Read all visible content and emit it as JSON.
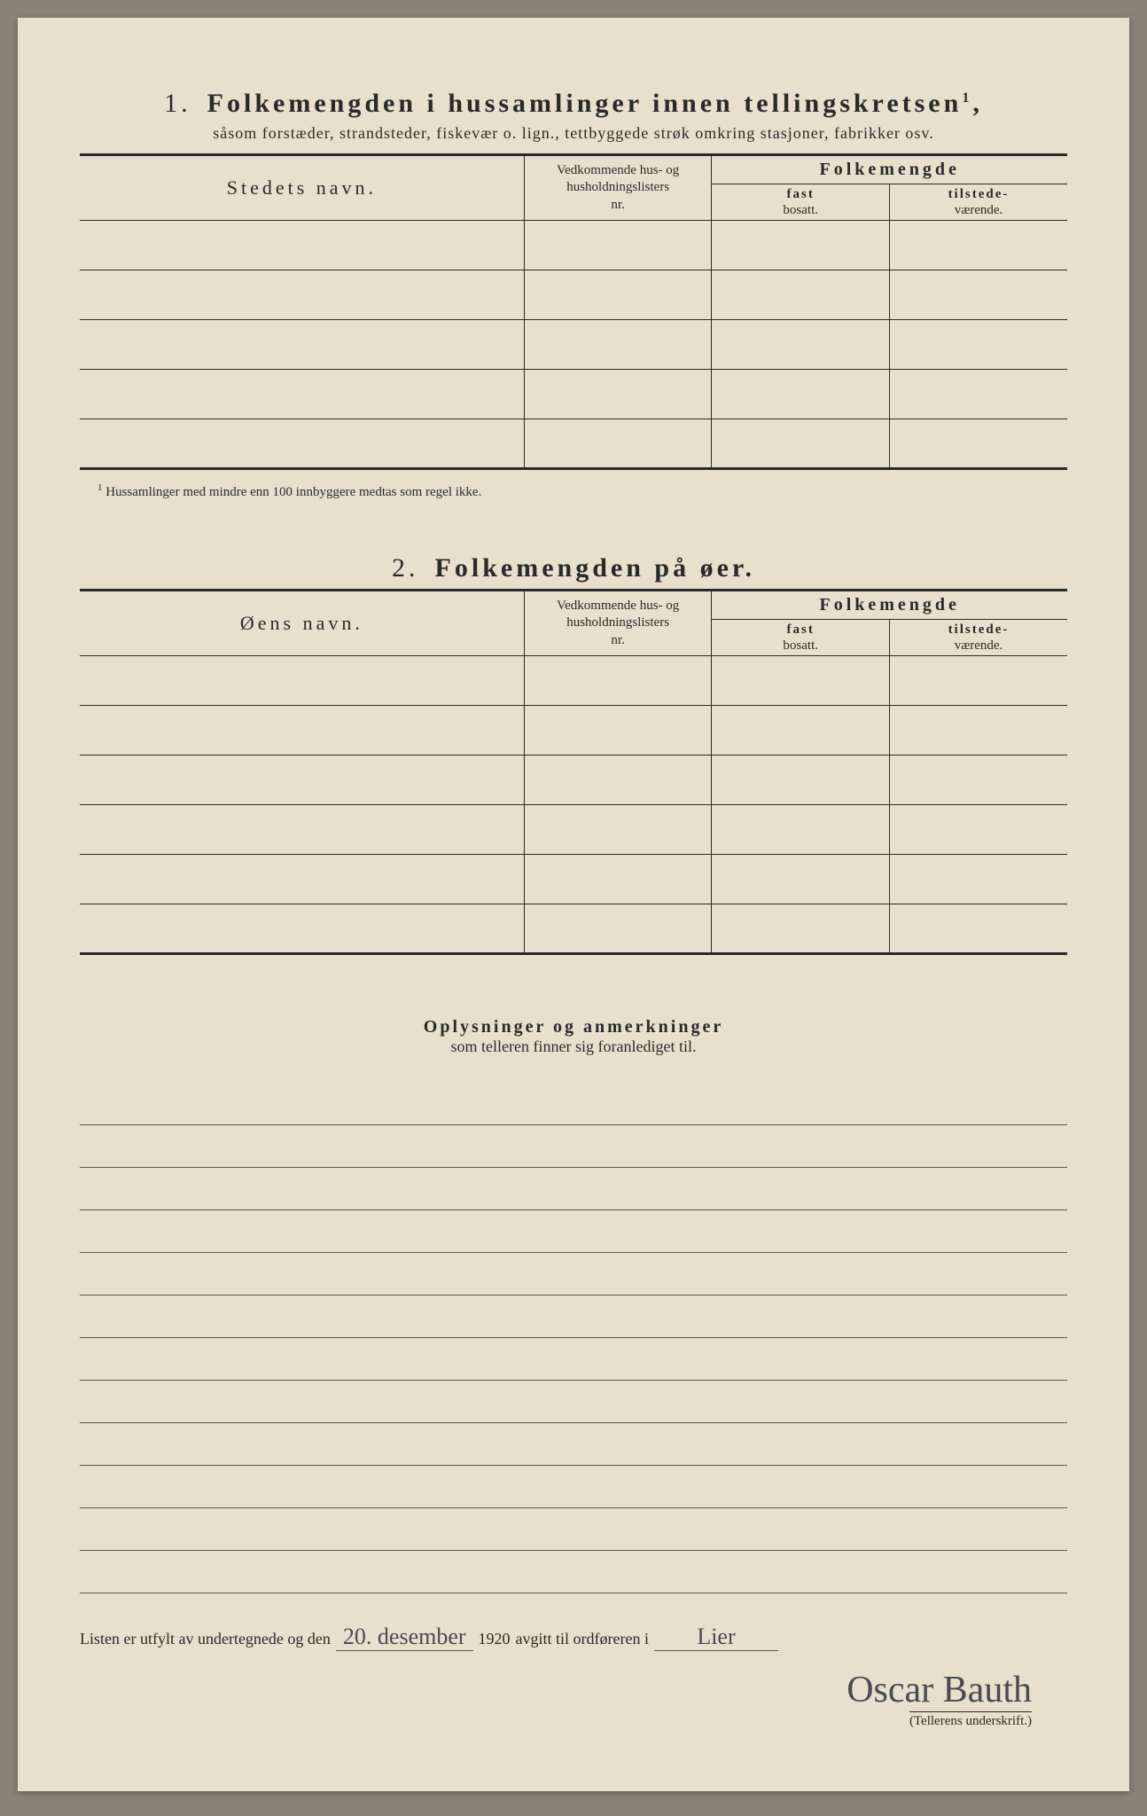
{
  "paper_bg": "#e8e0cc",
  "ink": "#2a2a2a",
  "handwriting_color": "#4a4a52",
  "section1": {
    "num": "1.",
    "title": "Folkemengden i hussamlinger innen tellingskretsen",
    "sup": "1",
    "subtitle": "såsom forstæder, strandsteder, fiskevær o. lign., tettbyggede strøk omkring stasjoner, fabrikker osv.",
    "col_name": "Stedets navn.",
    "col_nr_l1": "Vedkommende hus- og",
    "col_nr_l2": "husholdningslisters",
    "col_nr_l3": "nr.",
    "col_group": "Folkemengde",
    "col_fast_l1": "fast",
    "col_fast_l2": "bosatt.",
    "col_til_l1": "tilstede-",
    "col_til_l2": "værende.",
    "rows": 5,
    "footnote_mark": "1",
    "footnote": "Hussamlinger med mindre enn 100 innbyggere medtas som regel ikke."
  },
  "section2": {
    "num": "2.",
    "title": "Folkemengden på øer.",
    "col_name": "Øens navn.",
    "col_nr_l1": "Vedkommende hus- og",
    "col_nr_l2": "husholdningslisters",
    "col_nr_l3": "nr.",
    "col_group": "Folkemengde",
    "col_fast_l1": "fast",
    "col_fast_l2": "bosatt.",
    "col_til_l1": "tilstede-",
    "col_til_l2": "værende.",
    "rows": 6
  },
  "notes": {
    "title": "Oplysninger og anmerkninger",
    "sub": "som telleren finner sig foranlediget til.",
    "lines": 12
  },
  "bottom": {
    "pre": "Listen er utfylt av undertegnede og den",
    "date_hand": "20. desember",
    "year": "1920",
    "mid": "avgitt til ordføreren i",
    "place_hand": "Lier",
    "signature": "Oscar Bauth",
    "caption": "(Tellerens underskrift.)"
  }
}
